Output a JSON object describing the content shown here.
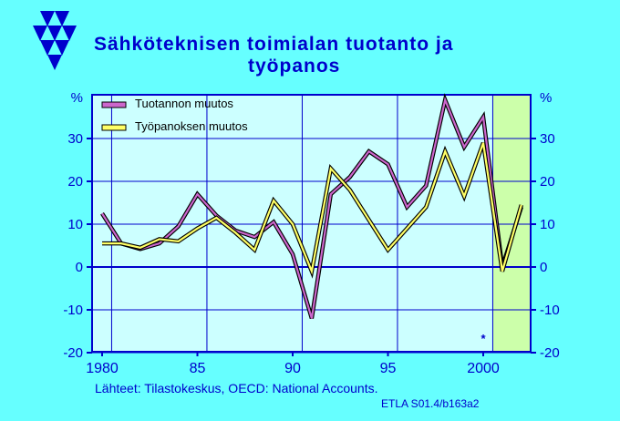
{
  "title_lines": [
    "Sähköteknisen toimialan tuotanto ja",
    "työpanos"
  ],
  "source": "Lähteet:   Tilastokeskus, OECD: National Accounts.",
  "code": "ETLA S01.4/b163a2",
  "forecast_marker": "*",
  "colors": {
    "background": "#66ffff",
    "plot_bg": "#ccffff",
    "forecast_bg": "#ccffaa",
    "axis": "#0000cc",
    "grid": "#0000cc",
    "series_fill": [
      "#cc66cc",
      "#ffff66"
    ],
    "series_outline": "#000000"
  },
  "logo": "etla-triangles-logo",
  "chart_data": {
    "type": "line",
    "x": [
      1980,
      1981,
      1982,
      1983,
      1984,
      1985,
      1986,
      1987,
      1988,
      1989,
      1990,
      1991,
      1992,
      1993,
      1994,
      1995,
      1996,
      1997,
      1998,
      1999,
      2000,
      2001,
      2002
    ],
    "series": [
      {
        "name": "Tuotannon muutos",
        "values": [
          12.5,
          5.5,
          4.2,
          5.5,
          9.5,
          17,
          12,
          8.5,
          7,
          10.5,
          3,
          -12,
          17,
          21,
          27,
          24,
          14,
          19,
          39,
          28,
          35,
          0,
          14
        ]
      },
      {
        "name": "Työpanoksen muutos",
        "values": [
          5.5,
          5.5,
          4.5,
          6.5,
          6,
          9,
          11.5,
          8,
          4,
          15.5,
          10,
          -1,
          23,
          18,
          11,
          4,
          9,
          14,
          27,
          16.5,
          29,
          -1,
          14.5
        ]
      }
    ],
    "xticks": [
      "1980",
      "85",
      "90",
      "95",
      "2000"
    ],
    "xtick_values": [
      1980,
      1985,
      1990,
      1995,
      2000
    ],
    "yticks": [
      "-20",
      "-10",
      "0",
      "10",
      "20",
      "30"
    ],
    "ytick_values": [
      -20,
      -10,
      0,
      10,
      20,
      30
    ],
    "ylabel_left": "%",
    "ylabel_right": "%",
    "xlim": [
      1979.5,
      2002.5
    ],
    "ylim": [
      -20,
      40
    ],
    "forecast_range": [
      2000.5,
      2002.5
    ],
    "grid": true,
    "legend_position": "top-left"
  }
}
